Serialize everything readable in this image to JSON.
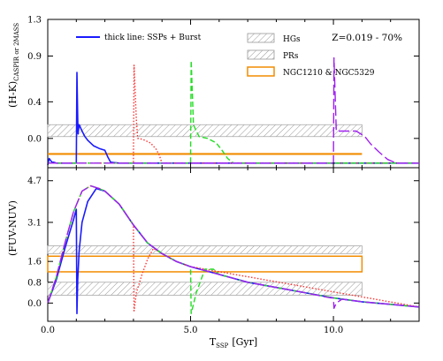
{
  "chart_data": [
    {
      "type": "line",
      "panel": "top",
      "ylabel": "(H-K)CASPIR or 2MASS",
      "ylabel_main": "(H-K)",
      "ylabel_sub": "CASPIR or 2MASS",
      "xlim": [
        0,
        13
      ],
      "ylim": [
        -0.32,
        1.3
      ],
      "yticks": [
        0.0,
        0.4,
        0.9,
        1.3
      ],
      "ytick_labels": [
        "0.0",
        "0.4",
        "0.9",
        "1.3"
      ],
      "annotation": "Z=0.019 - 70%",
      "legend": {
        "line_label": "thick line: SSPs + Burst",
        "hgs_label": "HGs",
        "prs_label": "PRs",
        "ngc_label": "NGC1210 & NGC5329"
      },
      "bands": [
        {
          "name": "HGs",
          "style": "hatch",
          "x": [
            0,
            11
          ],
          "y": [
            0.02,
            0.15
          ]
        },
        {
          "name": "NGC1210 & NGC5329",
          "style": "orange-line",
          "x": [
            0,
            11
          ],
          "y": [
            -0.17,
            -0.17
          ]
        }
      ],
      "series": [
        {
          "color": "#1a1aff",
          "style": "solid",
          "x": [
            0,
            0.05,
            0.15,
            0.2,
            0.3,
            1.0,
            1.02,
            1.06,
            1.1,
            1.2,
            1.3,
            1.4,
            1.6,
            1.8,
            2.0,
            2.1,
            2.2,
            2.5,
            3.0,
            13
          ],
          "y": [
            -0.29,
            -0.22,
            -0.26,
            -0.26,
            -0.27,
            -0.27,
            0.72,
            0.05,
            0.15,
            0.08,
            0.02,
            -0.02,
            -0.08,
            -0.11,
            -0.13,
            -0.2,
            -0.26,
            -0.27,
            -0.27,
            -0.27
          ]
        },
        {
          "color": "#ff3333",
          "style": "dotted",
          "x": [
            0,
            3.0,
            3.02,
            3.1,
            3.15,
            3.2,
            3.4,
            3.6,
            3.8,
            3.9,
            4.0,
            13
          ],
          "y": [
            -0.27,
            -0.27,
            0.8,
            0.2,
            0.0,
            0.0,
            -0.02,
            -0.05,
            -0.12,
            -0.18,
            -0.27,
            -0.27
          ]
        },
        {
          "color": "#22dd22",
          "style": "dashed",
          "x": [
            0,
            5.0,
            5.02,
            5.1,
            5.2,
            5.3,
            5.6,
            5.9,
            6.1,
            6.3,
            6.5,
            13
          ],
          "y": [
            -0.27,
            -0.27,
            0.85,
            0.15,
            0.08,
            0.02,
            0.0,
            -0.05,
            -0.13,
            -0.22,
            -0.27,
            -0.27
          ]
        },
        {
          "color": "#a020f0",
          "style": "longdash",
          "x": [
            0,
            10.0,
            10.02,
            10.1,
            10.4,
            10.8,
            11.1,
            11.3,
            11.6,
            11.9,
            12.2,
            13
          ],
          "y": [
            -0.27,
            -0.27,
            0.88,
            0.08,
            0.08,
            0.08,
            0.02,
            -0.06,
            -0.15,
            -0.23,
            -0.27,
            -0.27
          ]
        }
      ]
    },
    {
      "type": "line",
      "panel": "bottom",
      "ylabel": "(FUV-NUV)",
      "xlabel": "TSSP [Gyr]",
      "xlabel_main": "T",
      "xlabel_sub": "SSP",
      "xlabel_unit": "[Gyr]",
      "xlim": [
        0,
        13
      ],
      "ylim": [
        -0.7,
        5.2
      ],
      "xticks": [
        0,
        5,
        10
      ],
      "xtick_labels": [
        "0.0",
        "5.0",
        "10.0"
      ],
      "yticks": [
        0.0,
        0.8,
        1.6,
        3.1,
        4.7
      ],
      "ytick_labels": [
        "0.0",
        "0.8",
        "1.6",
        "3.1",
        "4.7"
      ],
      "bands": [
        {
          "name": "HGs",
          "style": "hatch",
          "x": [
            0,
            11
          ],
          "y": [
            1.9,
            2.2
          ]
        },
        {
          "name": "PRs",
          "style": "hatch",
          "x": [
            0,
            11
          ],
          "y": [
            0.3,
            0.8
          ]
        },
        {
          "name": "NGC1210 & NGC5329",
          "style": "orange-box",
          "x": [
            0,
            11
          ],
          "y": [
            1.2,
            1.8
          ]
        }
      ],
      "series": [
        {
          "color": "#1a1aff",
          "style": "solid",
          "x": [
            0,
            0.3,
            0.6,
            0.9,
            1.0,
            1.02,
            1.05,
            1.1,
            1.2,
            1.4,
            1.7,
            2.0,
            2.5,
            3.0,
            3.5,
            4.0,
            4.5,
            5.0,
            6.0,
            7.0,
            8.0,
            9.0,
            10.0,
            11.0,
            12.0,
            13
          ],
          "y": [
            0.0,
            0.9,
            2.1,
            3.2,
            3.6,
            -0.4,
            0.9,
            2.0,
            3.1,
            3.9,
            4.4,
            4.3,
            3.8,
            3.0,
            2.3,
            1.9,
            1.6,
            1.4,
            1.1,
            0.8,
            0.6,
            0.4,
            0.2,
            0.05,
            -0.05,
            -0.15
          ]
        },
        {
          "color": "#ff3333",
          "style": "dotted",
          "x": [
            0,
            0.3,
            0.6,
            0.9,
            1.2,
            1.5,
            1.8,
            2.0,
            2.5,
            3.0,
            3.02,
            3.1,
            3.3,
            3.5,
            3.7,
            4.0,
            4.5,
            5.0,
            13
          ],
          "y": [
            0.0,
            1.0,
            2.3,
            3.5,
            4.3,
            4.5,
            4.4,
            4.3,
            3.8,
            3.0,
            -0.3,
            0.4,
            1.1,
            1.7,
            2.1,
            1.9,
            1.6,
            1.4,
            -0.15
          ]
        },
        {
          "color": "#22dd22",
          "style": "dashed",
          "x": [
            0,
            0.3,
            0.6,
            0.9,
            1.2,
            1.5,
            1.8,
            2.0,
            2.5,
            3.0,
            3.5,
            4.0,
            4.5,
            5.0,
            5.02,
            5.2,
            5.5,
            5.8,
            6.0,
            7.0,
            8.0,
            9.0,
            10.0,
            11.0,
            12.0,
            13
          ],
          "y": [
            0.0,
            1.0,
            2.3,
            3.5,
            4.3,
            4.5,
            4.4,
            4.3,
            3.8,
            3.0,
            2.3,
            1.9,
            1.6,
            1.4,
            -0.4,
            0.4,
            1.3,
            1.3,
            1.1,
            0.8,
            0.6,
            0.4,
            0.2,
            0.05,
            -0.05,
            -0.15
          ]
        },
        {
          "color": "#a020f0",
          "style": "longdash",
          "x": [
            0,
            0.3,
            0.6,
            0.9,
            1.2,
            1.5,
            1.8,
            2.0,
            2.5,
            3.0,
            3.5,
            4.0,
            4.5,
            5.0,
            6.0,
            7.0,
            8.0,
            9.0,
            9.9,
            10.0,
            10.02,
            10.1,
            10.3,
            11.0,
            12.0,
            13
          ],
          "y": [
            0.0,
            1.0,
            2.3,
            3.5,
            4.3,
            4.5,
            4.4,
            4.3,
            3.8,
            3.0,
            2.3,
            1.9,
            1.6,
            1.4,
            1.1,
            0.8,
            0.6,
            0.4,
            0.2,
            0.2,
            -0.2,
            0.0,
            0.15,
            0.05,
            -0.05,
            -0.15
          ]
        }
      ]
    }
  ]
}
